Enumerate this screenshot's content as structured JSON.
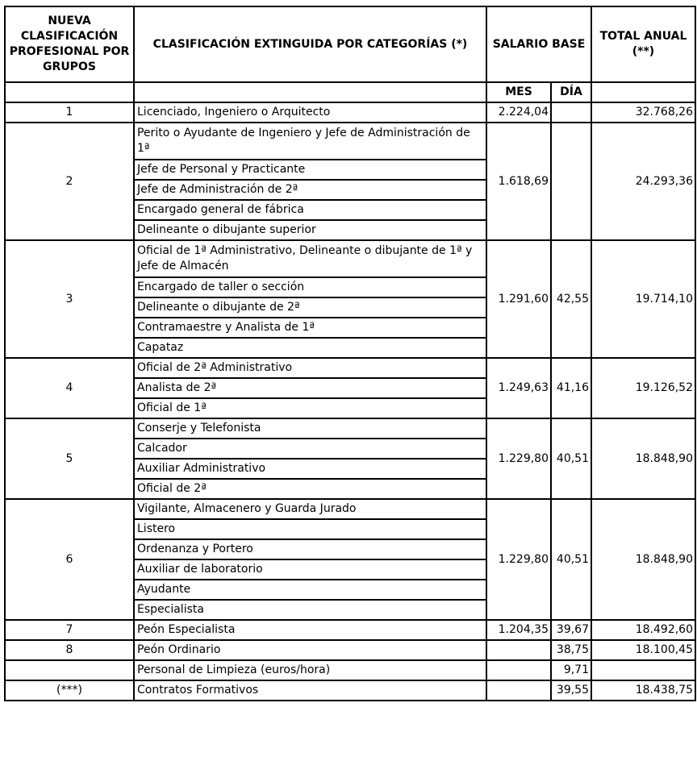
{
  "header": {
    "col_group": "NUEVA CLASIFICACIÓN PROFESIONAL POR GRUPOS",
    "col_categories": "CLASIFICACIÓN EXTINGUIDA POR CATEGORÍAS (*)",
    "col_salary": "SALARIO BASE",
    "col_total": "TOTAL ANUAL (**)",
    "sub_month": "MES",
    "sub_day": "DÍA"
  },
  "groups": [
    {
      "group": "1",
      "categories": [
        "Licenciado, Ingeniero o Arquitecto"
      ],
      "mes": "2.224,04",
      "dia": "",
      "total": "32.768,26"
    },
    {
      "group": "2",
      "categories": [
        "Perito o Ayudante de Ingeniero y Jefe de Administración de 1ª",
        "Jefe de Personal y Practicante",
        "Jefe de Administración de 2ª",
        "Encargado general de fábrica",
        "Delineante o dibujante superior"
      ],
      "mes": "1.618,69",
      "dia": "",
      "total": "24.293,36"
    },
    {
      "group": "3",
      "categories": [
        "Oficial de 1ª Administrativo, Delineante o dibujante de 1ª y Jefe de Almacén",
        "Encargado de taller o sección",
        "Delineante o dibujante de 2ª",
        "Contramaestre y Analista de 1ª",
        "Capataz"
      ],
      "mes": "1.291,60",
      "dia": "42,55",
      "total": "19.714,10"
    },
    {
      "group": "4",
      "categories": [
        "Oficial de 2ª Administrativo",
        "Analista de 2ª",
        "Oficial de 1ª"
      ],
      "mes": "1.249,63",
      "dia": "41,16",
      "total": "19.126,52"
    },
    {
      "group": "5",
      "categories": [
        "Conserje y Telefonista",
        "Calcador",
        "Auxiliar Administrativo",
        "Oficial de 2ª"
      ],
      "mes": "1.229,80",
      "dia": "40,51",
      "total": "18.848,90"
    },
    {
      "group": "6",
      "categories": [
        "Vigilante, Almacenero y Guarda Jurado",
        "Listero",
        "Ordenanza y Portero",
        "Auxiliar de laboratorio",
        "Ayudante",
        "Especialista"
      ],
      "mes": "1.229,80",
      "dia": "40,51",
      "total": "18.848,90"
    },
    {
      "group": "7",
      "categories": [
        "Peón Especialista"
      ],
      "mes": "1.204,35",
      "dia": "39,67",
      "total": "18.492,60"
    },
    {
      "group": "8",
      "categories": [
        "Peón Ordinario"
      ],
      "mes": "",
      "dia": "38,75",
      "total": "18.100,45"
    },
    {
      "group": "",
      "categories": [
        "Personal de Limpieza (euros/hora)"
      ],
      "mes": "",
      "dia": "9,71",
      "total": ""
    },
    {
      "group": "(***)",
      "categories": [
        "Contratos Formativos"
      ],
      "mes": "",
      "dia": "39,55",
      "total": "18.438,75"
    }
  ]
}
